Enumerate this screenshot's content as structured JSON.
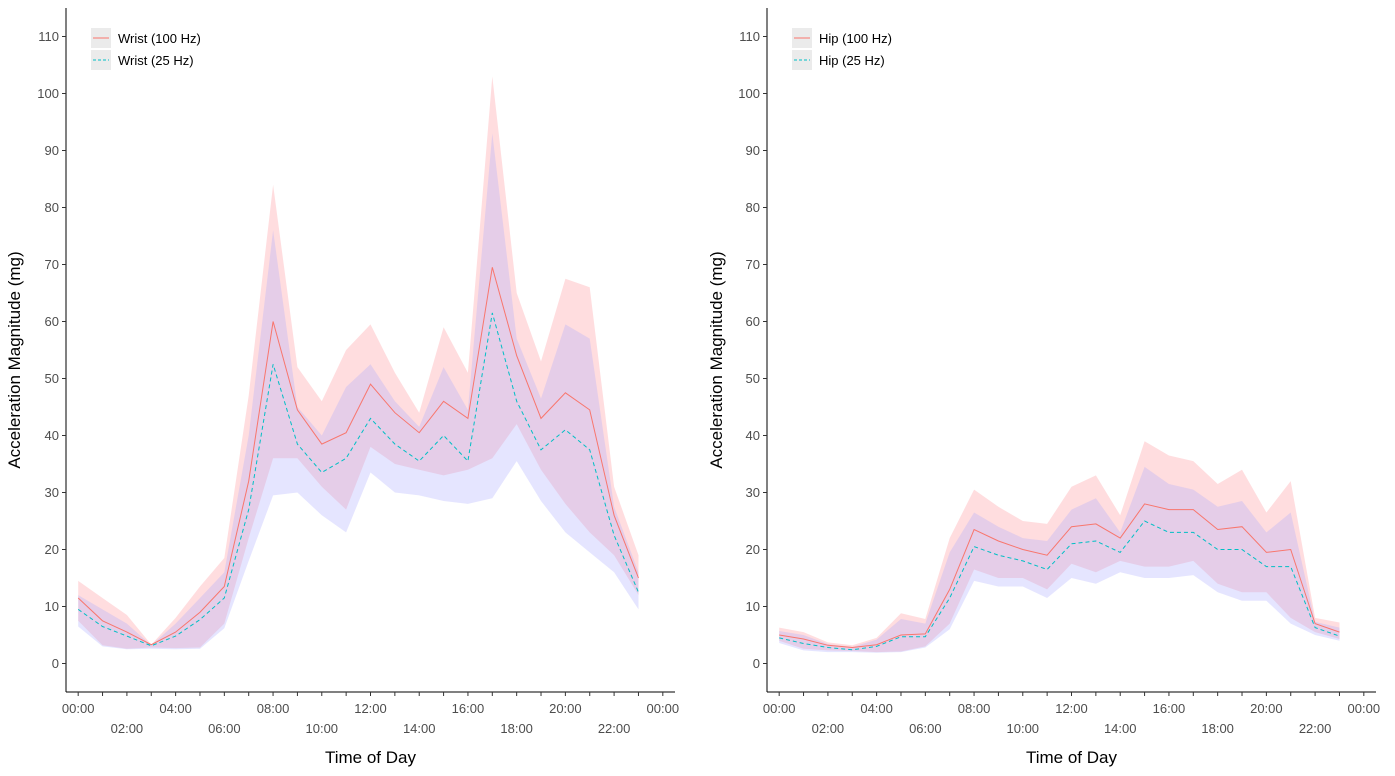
{
  "colors": {
    "band_100hz": "#ff9ea4",
    "band_25hz": "#aaa8ff",
    "line_100hz": "#f8766d",
    "line_25hz": "#00bfc4",
    "axis": "#000000",
    "legend_bg": "#ebebeb"
  },
  "chart_data": [
    {
      "type": "line",
      "title": "",
      "xlabel": "Time of Day",
      "ylabel": "Acceleration Magnitude (mg)",
      "xlim": [
        -0.5,
        24.5
      ],
      "ylim": [
        -5,
        115
      ],
      "x_ticks": [
        "00:00",
        "02:00",
        "04:00",
        "06:00",
        "08:00",
        "10:00",
        "12:00",
        "14:00",
        "16:00",
        "18:00",
        "20:00",
        "22:00",
        "00:00"
      ],
      "y_ticks": [
        0,
        10,
        20,
        30,
        40,
        50,
        60,
        70,
        80,
        90,
        100,
        110
      ],
      "grid": false,
      "legend_position": "top-left",
      "x": [
        0,
        1,
        2,
        3,
        4,
        5,
        6,
        7,
        8,
        9,
        10,
        11,
        12,
        13,
        14,
        15,
        16,
        17,
        18,
        19,
        20,
        21,
        22,
        23
      ],
      "series": [
        {
          "name": "Wrist (100 Hz)",
          "style": "solid",
          "values": [
            11.5,
            7.5,
            5.5,
            3.3,
            5.5,
            9,
            13.5,
            32,
            60,
            44.5,
            38.5,
            40.5,
            49,
            44,
            40.5,
            46,
            43,
            69.5,
            54,
            43,
            47.5,
            44.5,
            26,
            15
          ],
          "lower": [
            7.5,
            3.2,
            2.6,
            2.8,
            2.7,
            2.8,
            7,
            22,
            36,
            36,
            31,
            27,
            38,
            35,
            34,
            33,
            34,
            36,
            42,
            34,
            28,
            23,
            19,
            12
          ],
          "upper": [
            14.5,
            11.5,
            8.5,
            3.3,
            8,
            13.5,
            18.5,
            47,
            84,
            52,
            46,
            55,
            59.5,
            51,
            44,
            59,
            51,
            103,
            65,
            53,
            67.5,
            66,
            31,
            19
          ]
        },
        {
          "name": "Wrist (25 Hz)",
          "style": "dashed",
          "values": [
            9.5,
            6.5,
            4.8,
            3.1,
            4.8,
            7.7,
            11.5,
            27,
            52.5,
            38.5,
            33.5,
            36,
            43,
            38.5,
            35.5,
            40,
            35.5,
            61.5,
            46,
            37.5,
            41,
            37.5,
            22.5,
            12.5
          ],
          "lower": [
            6.5,
            3,
            2.5,
            2.6,
            2.5,
            2.6,
            6.2,
            18,
            29.5,
            30,
            26,
            23,
            33.5,
            30,
            29.5,
            28.5,
            28,
            29,
            35.5,
            28.5,
            23,
            19.5,
            16,
            9.5
          ],
          "upper": [
            12,
            9.5,
            7,
            3.2,
            7,
            11.5,
            16,
            40,
            76,
            45,
            40,
            48.5,
            52.5,
            46,
            41.5,
            52,
            44.5,
            93,
            57,
            46.5,
            59.5,
            57,
            27.5,
            16
          ]
        }
      ]
    },
    {
      "type": "line",
      "title": "",
      "xlabel": "Time of Day",
      "ylabel": "Acceleration Magnitude (mg)",
      "xlim": [
        -0.5,
        24.5
      ],
      "ylim": [
        -5,
        115
      ],
      "x_ticks": [
        "00:00",
        "02:00",
        "04:00",
        "06:00",
        "08:00",
        "10:00",
        "12:00",
        "14:00",
        "16:00",
        "18:00",
        "20:00",
        "22:00",
        "00:00"
      ],
      "y_ticks": [
        0,
        10,
        20,
        30,
        40,
        50,
        60,
        70,
        80,
        90,
        100,
        110
      ],
      "grid": false,
      "legend_position": "top-left",
      "x": [
        0,
        1,
        2,
        3,
        4,
        5,
        6,
        7,
        8,
        9,
        10,
        11,
        12,
        13,
        14,
        15,
        16,
        17,
        18,
        19,
        20,
        21,
        22,
        23
      ],
      "series": [
        {
          "name": "Hip (100 Hz)",
          "style": "solid",
          "values": [
            5,
            4.3,
            3.2,
            2.8,
            3.3,
            5,
            5.2,
            13,
            23.5,
            21.5,
            20,
            19,
            24,
            24.5,
            22,
            28,
            27,
            27,
            23.5,
            24,
            19.5,
            20,
            7,
            5.5
          ],
          "lower": [
            4,
            2.6,
            2.3,
            2.2,
            2,
            2.1,
            3,
            7,
            16.5,
            15,
            15,
            13,
            17.5,
            16,
            18,
            17,
            17,
            18,
            14,
            12.5,
            12.5,
            8,
            5.5,
            4.3
          ],
          "upper": [
            6.3,
            5.5,
            3.7,
            3.2,
            4.5,
            8.8,
            7.8,
            22,
            30.5,
            27.5,
            25,
            24.5,
            31,
            33,
            26,
            39,
            36.5,
            35.5,
            31.5,
            34,
            26.5,
            32,
            8,
            7.2
          ]
        },
        {
          "name": "Hip (25 Hz)",
          "style": "dashed",
          "values": [
            4.5,
            3.5,
            2.8,
            2.4,
            3,
            4.7,
            4.7,
            11.5,
            20.5,
            19,
            18,
            16.5,
            21,
            21.5,
            19.5,
            25,
            23,
            23,
            20,
            20,
            17,
            17,
            6.3,
            4.8
          ],
          "lower": [
            3.6,
            2.3,
            2,
            2,
            1.9,
            2,
            2.8,
            6,
            14.5,
            13.5,
            13.5,
            11.5,
            15,
            14,
            16,
            15,
            15,
            15.5,
            12.5,
            11,
            11,
            7,
            5,
            4
          ],
          "upper": [
            5.7,
            5,
            3.4,
            2.9,
            4.2,
            7.8,
            7,
            19.5,
            26.5,
            24,
            22,
            21.5,
            27,
            29,
            23,
            34.5,
            31.5,
            30.5,
            27.5,
            28.5,
            23,
            26.5,
            7.3,
            6.3
          ]
        }
      ]
    }
  ]
}
